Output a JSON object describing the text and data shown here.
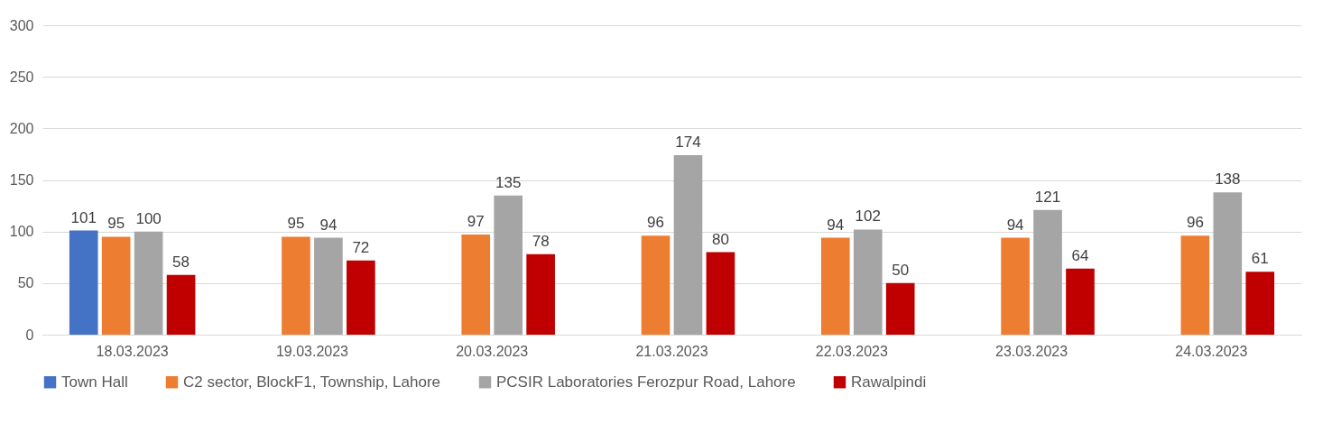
{
  "chart_data": {
    "type": "bar",
    "categories": [
      "18.03.2023",
      "19.03.2023",
      "20.03.2023",
      "21.03.2023",
      "22.03.2023",
      "23.03.2023",
      "24.03.2023"
    ],
    "series": [
      {
        "name": "Town Hall",
        "color": "#4472c4",
        "values": [
          101,
          null,
          null,
          null,
          null,
          null,
          null
        ]
      },
      {
        "name": "C2 sector, BlockF1, Township, Lahore",
        "color": "#ed7d31",
        "values": [
          95,
          95,
          97,
          96,
          94,
          94,
          96
        ]
      },
      {
        "name": "PCSIR Laboratories Ferozpur Road, Lahore",
        "color": "#a5a5a5",
        "values": [
          100,
          94,
          135,
          174,
          102,
          121,
          138
        ]
      },
      {
        "name": "Rawalpindi",
        "color": "#c00000",
        "values": [
          58,
          72,
          78,
          80,
          50,
          64,
          61
        ]
      }
    ],
    "ylim": [
      0,
      300
    ],
    "yticks": [
      0,
      50,
      100,
      150,
      200,
      250,
      300
    ],
    "grid": "y",
    "legend": "bottom",
    "data_labels": true
  }
}
